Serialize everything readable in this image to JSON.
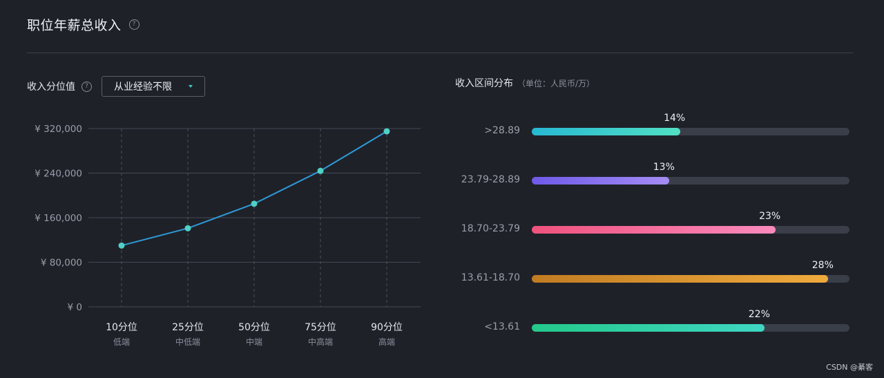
{
  "page": {
    "title": "职位年薪总收入",
    "help_icon": "question-circle-icon"
  },
  "left_panel": {
    "label": "收入分位值",
    "dropdown": {
      "selected": "从业经验不限"
    }
  },
  "right_panel": {
    "label": "收入区间分布",
    "unit": "（单位：人民币/万）"
  },
  "chart_data": [
    {
      "type": "line",
      "y_prefix": "¥",
      "ylim": [
        0,
        320000
      ],
      "y_ticks": [
        "¥ 0",
        "¥ 80,000",
        "¥ 160,000",
        "¥ 240,000",
        "¥ 320,000"
      ],
      "categories": [
        "10分位",
        "25分位",
        "50分位",
        "75分位",
        "90分位"
      ],
      "category_sub": [
        "低端",
        "中低端",
        "中端",
        "中高端",
        "高端"
      ],
      "values": [
        110000,
        141000,
        185000,
        244000,
        315000
      ],
      "grid": true,
      "line_color": "#2e9bd6",
      "marker_color": "#4fd1c5"
    },
    {
      "type": "bar",
      "orientation": "horizontal",
      "categories": [
        ">28.89",
        "23.79-28.89",
        "18.70-23.79",
        "13.61-18.70",
        "<13.61"
      ],
      "values": [
        14,
        13,
        23,
        28,
        22
      ],
      "value_labels": [
        "14%",
        "13%",
        "23%",
        "28%",
        "22%"
      ],
      "colors": [
        [
          "#27b8d3",
          "#52e0c4"
        ],
        [
          "#6e5ae8",
          "#a48cf4"
        ],
        [
          "#f0527d",
          "#f98abd"
        ],
        [
          "#c17c22",
          "#efaa3d"
        ],
        [
          "#23c98a",
          "#3fd6c3"
        ]
      ]
    }
  ],
  "watermark": "CSDN @綦客"
}
